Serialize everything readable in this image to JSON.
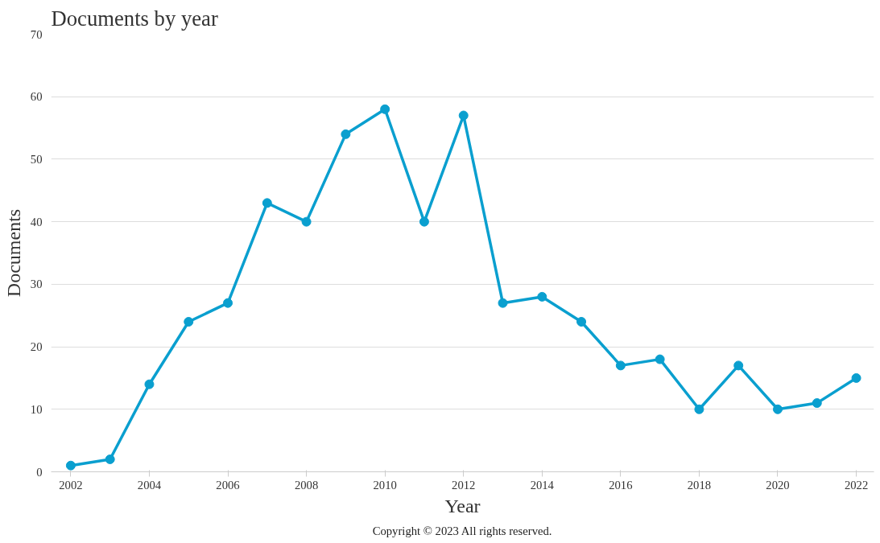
{
  "chart_data": {
    "type": "line",
    "title": "Documents by year",
    "xlabel": "Year",
    "ylabel": "Documents",
    "x": [
      2002,
      2003,
      2004,
      2005,
      2006,
      2007,
      2008,
      2009,
      2010,
      2011,
      2012,
      2013,
      2014,
      2015,
      2016,
      2017,
      2018,
      2019,
      2020,
      2021,
      2022
    ],
    "series": [
      {
        "color": "#0a9fcf",
        "values": [
          1,
          2,
          14,
          24,
          27,
          43,
          40,
          54,
          58,
          40,
          57,
          27,
          28,
          24,
          17,
          18,
          10,
          17,
          10,
          11,
          15
        ]
      }
    ],
    "xlim": [
      2001.5,
      2022.45
    ],
    "xticks": [
      2002,
      2004,
      2006,
      2008,
      2010,
      2012,
      2014,
      2016,
      2018,
      2020,
      2022
    ],
    "ylim": [
      0,
      70
    ],
    "yticks": [
      0,
      10,
      20,
      30,
      40,
      50,
      60,
      70
    ],
    "grid": "y",
    "marker": "circle",
    "line_style": "solid",
    "annotations": [
      "Copyright © 2023 All rights reserved."
    ]
  }
}
